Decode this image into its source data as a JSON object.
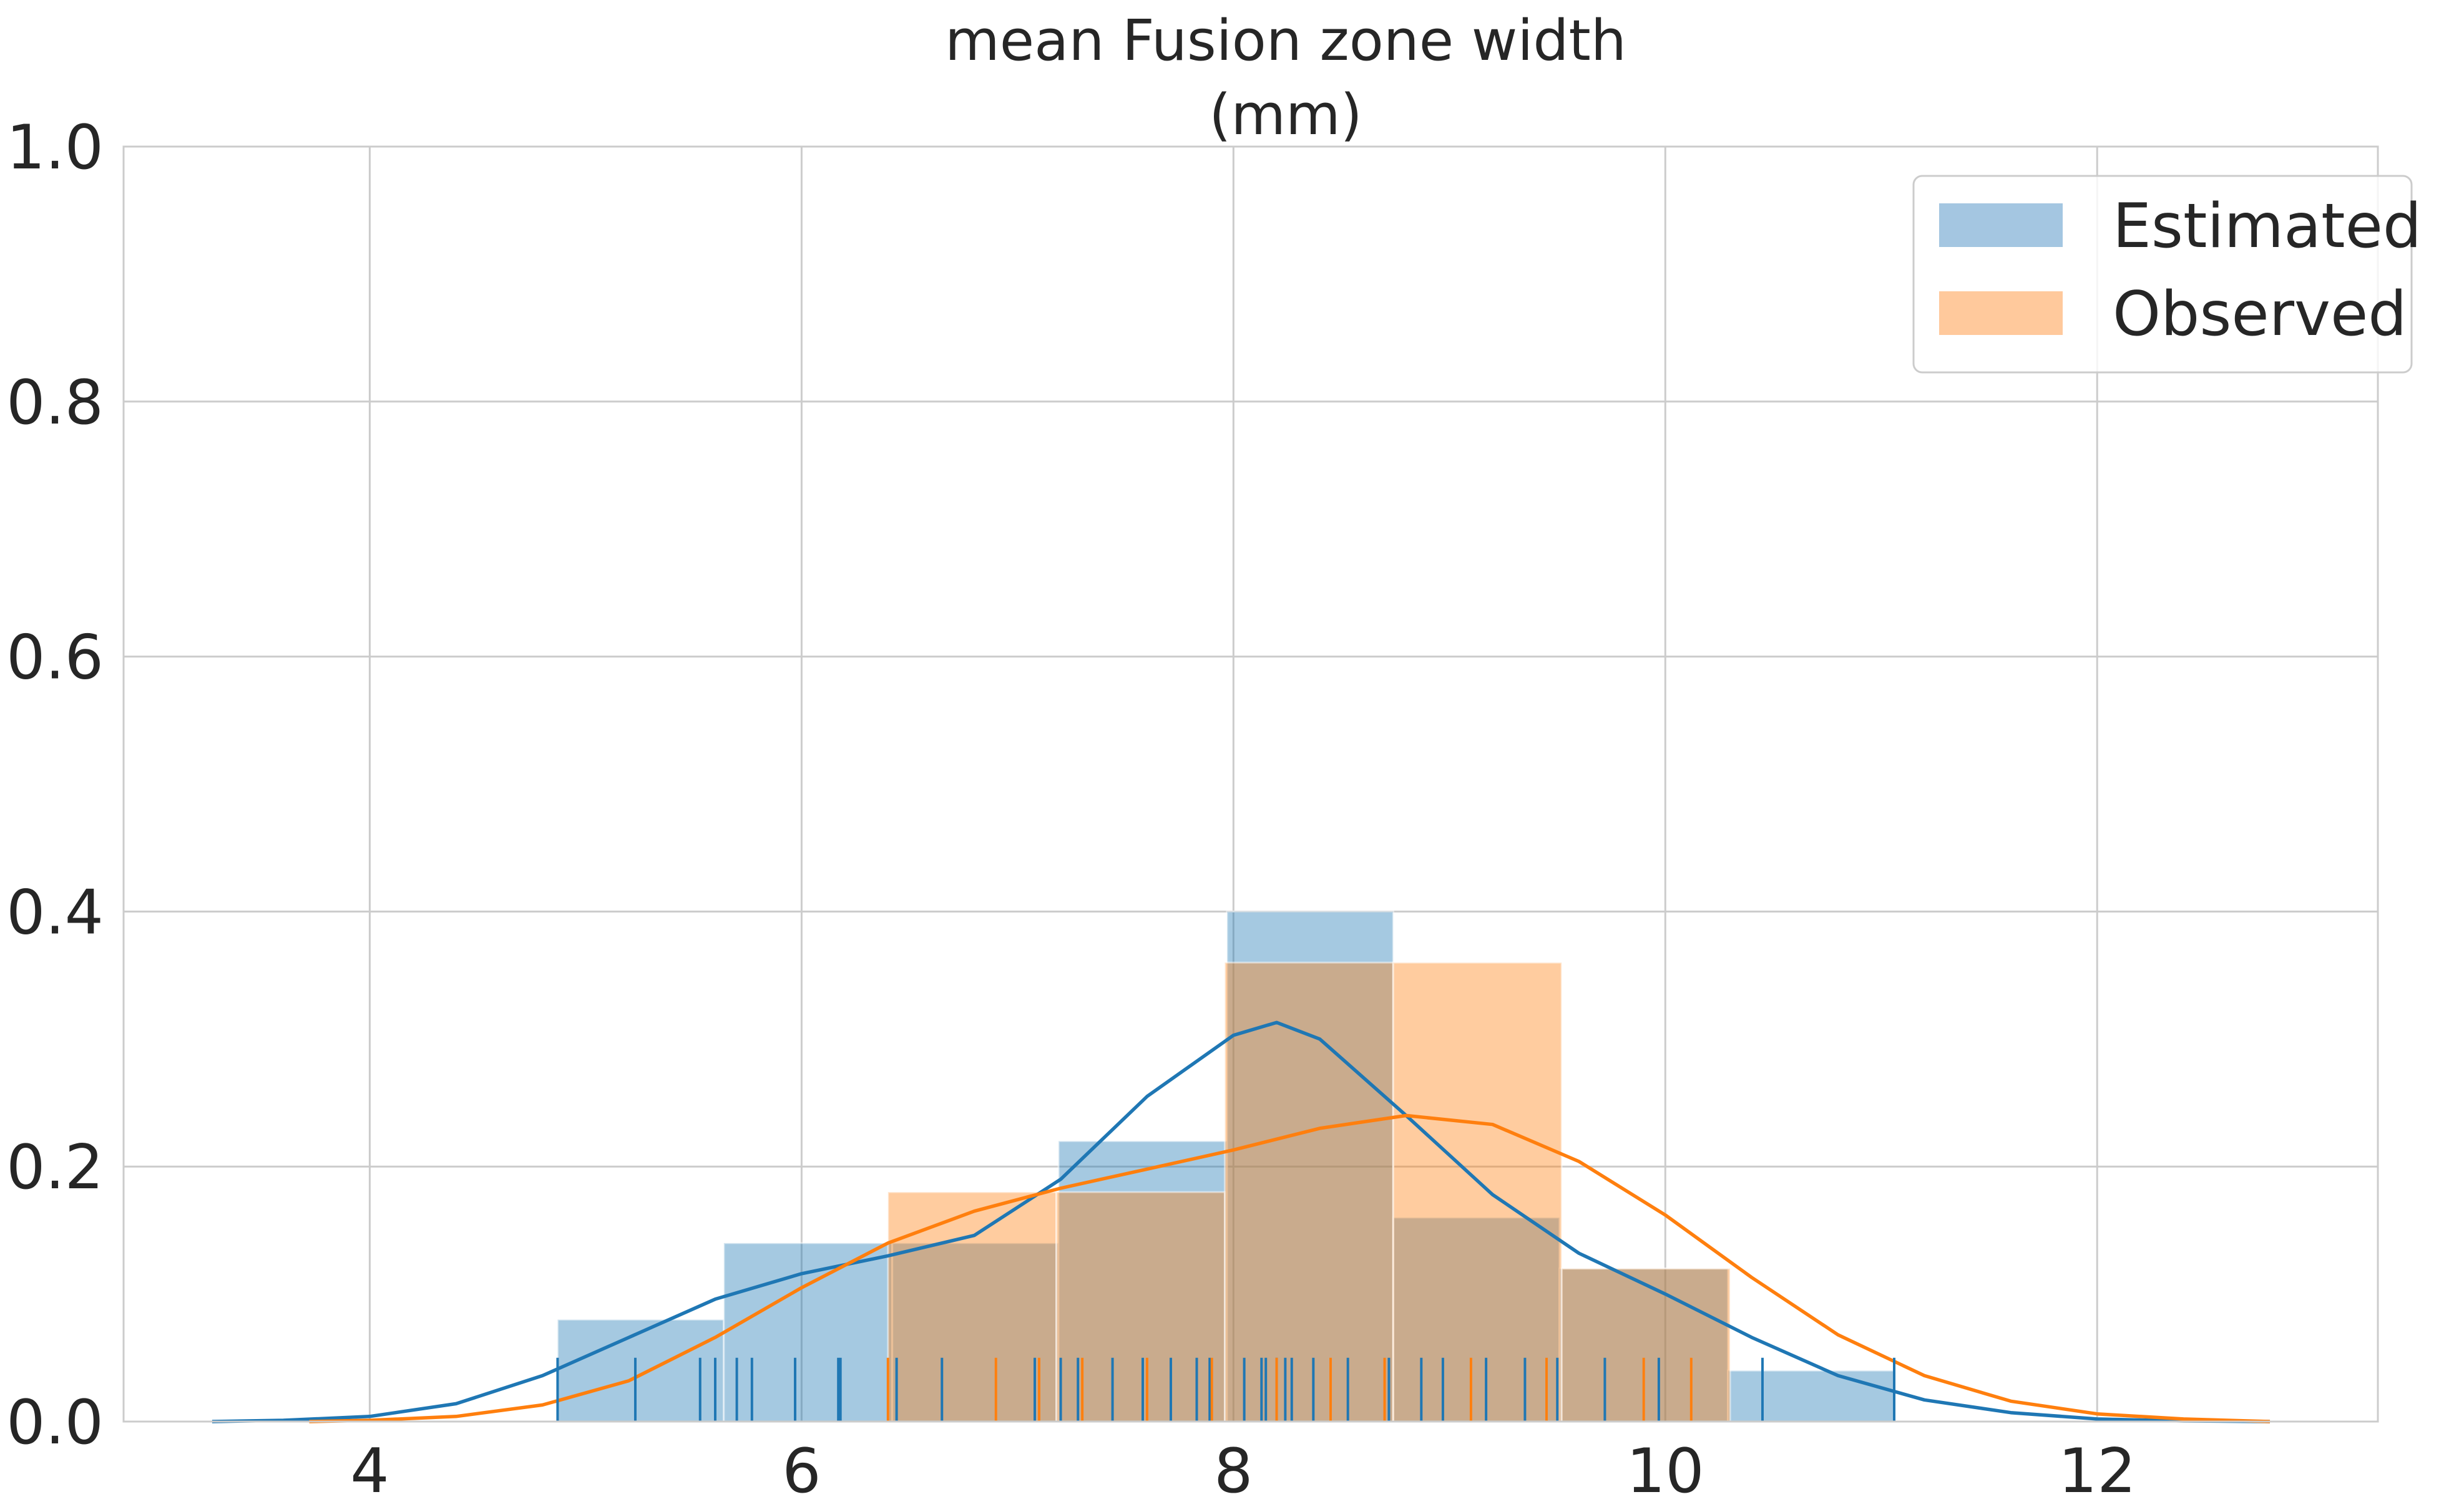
{
  "chart_data": {
    "type": "histogram",
    "title_lines": [
      "mean Fusion zone width",
      "(mm)"
    ],
    "xlim": [
      2.86,
      13.3
    ],
    "ylim": [
      0,
      1.0
    ],
    "xticks": [
      4,
      6,
      8,
      10,
      12
    ],
    "yticks": [
      0.0,
      0.2,
      0.4,
      0.6,
      0.8,
      1.0
    ],
    "xtick_labels": [
      "4",
      "6",
      "8",
      "10",
      "12"
    ],
    "ytick_labels": [
      "0.0",
      "0.2",
      "0.4",
      "0.6",
      "0.8",
      "1.0"
    ],
    "grid": true,
    "legend_position": "top-right",
    "series": [
      {
        "name": "Estimated",
        "color": "#1f77b4",
        "bar_fill": "#a4c6e1",
        "bins": [
          {
            "x0": 4.87,
            "x1": 5.64,
            "height": 0.08
          },
          {
            "x0": 5.64,
            "x1": 6.42,
            "height": 0.14
          },
          {
            "x0": 6.42,
            "x1": 7.19,
            "height": 0.14
          },
          {
            "x0": 7.19,
            "x1": 7.97,
            "height": 0.22
          },
          {
            "x0": 7.97,
            "x1": 8.74,
            "height": 0.4
          },
          {
            "x0": 8.74,
            "x1": 9.51,
            "height": 0.16
          },
          {
            "x0": 9.51,
            "x1": 10.29,
            "height": 0.12
          },
          {
            "x0": 10.29,
            "x1": 11.06,
            "height": 0.04
          }
        ],
        "kde": [
          [
            3.27,
            0.0
          ],
          [
            3.6,
            0.001
          ],
          [
            4.0,
            0.004
          ],
          [
            4.4,
            0.014
          ],
          [
            4.8,
            0.036
          ],
          [
            5.2,
            0.066
          ],
          [
            5.6,
            0.096
          ],
          [
            6.0,
            0.116
          ],
          [
            6.4,
            0.13
          ],
          [
            6.8,
            0.146
          ],
          [
            7.2,
            0.19
          ],
          [
            7.6,
            0.255
          ],
          [
            8.0,
            0.303
          ],
          [
            8.2,
            0.313
          ],
          [
            8.4,
            0.3
          ],
          [
            8.8,
            0.24
          ],
          [
            9.2,
            0.178
          ],
          [
            9.6,
            0.132
          ],
          [
            10.0,
            0.1
          ],
          [
            10.4,
            0.066
          ],
          [
            10.8,
            0.036
          ],
          [
            11.2,
            0.017
          ],
          [
            11.6,
            0.007
          ],
          [
            12.0,
            0.002
          ],
          [
            12.4,
            0.0005
          ],
          [
            12.8,
            0.0
          ]
        ],
        "rug": [
          4.87,
          5.23,
          5.53,
          5.6,
          5.7,
          5.77,
          5.97,
          6.17,
          6.18,
          6.44,
          6.65,
          7.08,
          7.2,
          7.28,
          7.44,
          7.58,
          7.71,
          7.83,
          7.89,
          8.05,
          8.13,
          8.15,
          8.2,
          8.24,
          8.27,
          8.37,
          8.53,
          8.72,
          8.87,
          8.97,
          9.17,
          9.35,
          9.5,
          9.72,
          9.97,
          10.45,
          11.06
        ]
      },
      {
        "name": "Observed",
        "color": "#ff7f0e",
        "bar_fill": "#ffc99c",
        "bins": [
          {
            "x0": 6.4,
            "x1": 7.18,
            "height": 0.18
          },
          {
            "x0": 7.18,
            "x1": 7.96,
            "height": 0.18
          },
          {
            "x0": 7.96,
            "x1": 8.74,
            "height": 0.36
          },
          {
            "x0": 8.74,
            "x1": 9.52,
            "height": 0.36
          },
          {
            "x0": 9.52,
            "x1": 10.3,
            "height": 0.12
          }
        ],
        "kde": [
          [
            3.72,
            0.0
          ],
          [
            4.0,
            0.001
          ],
          [
            4.4,
            0.004
          ],
          [
            4.8,
            0.013
          ],
          [
            5.2,
            0.032
          ],
          [
            5.6,
            0.066
          ],
          [
            6.0,
            0.105
          ],
          [
            6.4,
            0.14
          ],
          [
            6.8,
            0.165
          ],
          [
            7.2,
            0.183
          ],
          [
            7.6,
            0.198
          ],
          [
            8.0,
            0.213
          ],
          [
            8.4,
            0.23
          ],
          [
            8.8,
            0.24
          ],
          [
            9.2,
            0.233
          ],
          [
            9.6,
            0.204
          ],
          [
            10.0,
            0.162
          ],
          [
            10.4,
            0.113
          ],
          [
            10.8,
            0.068
          ],
          [
            11.2,
            0.036
          ],
          [
            11.6,
            0.016
          ],
          [
            12.0,
            0.006
          ],
          [
            12.4,
            0.002
          ],
          [
            12.8,
            0.0
          ]
        ],
        "rug": [
          6.4,
          6.9,
          7.1,
          7.3,
          7.6,
          7.9,
          8.2,
          8.45,
          8.7,
          9.1,
          9.45,
          9.9,
          10.12
        ]
      }
    ]
  },
  "legend": {
    "items": [
      {
        "label": "Estimated",
        "color": "#a4c6e1"
      },
      {
        "label": "Observed",
        "color": "#ffc99c"
      }
    ]
  }
}
